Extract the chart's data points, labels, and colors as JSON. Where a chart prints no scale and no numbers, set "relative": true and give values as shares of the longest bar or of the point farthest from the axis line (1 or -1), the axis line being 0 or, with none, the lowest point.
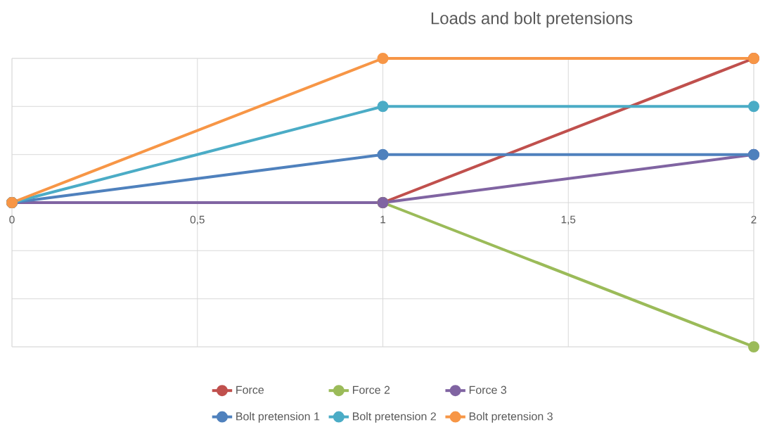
{
  "chart_data": {
    "type": "line",
    "title": "Loads and bolt pretensions",
    "relative": true,
    "x": [
      0,
      1,
      2
    ],
    "xlim": [
      0,
      2
    ],
    "xticks": [
      0,
      {
        "value": 0.5,
        "label": "0,5"
      },
      1,
      {
        "value": 1.5,
        "label": "1,5"
      },
      2
    ],
    "grid": true,
    "legend": "bottom",
    "marker": "circle",
    "line_style": "solid",
    "series": [
      {
        "name": "Force",
        "color": "#c0504d",
        "values": [
          0,
          0,
          1
        ]
      },
      {
        "name": "Force 2",
        "color": "#9bbb59",
        "values": [
          0,
          0,
          -1
        ]
      },
      {
        "name": "Force 3",
        "color": "#8064a2",
        "values": [
          0,
          0,
          0.333
        ]
      },
      {
        "name": "Bolt pretension 1",
        "color": "#4f81bd",
        "values": [
          0,
          0.333,
          0.333
        ]
      },
      {
        "name": "Bolt pretension 2",
        "color": "#4bacc6",
        "values": [
          0,
          0.667,
          0.667
        ]
      },
      {
        "name": "Bolt pretension 3",
        "color": "#f79646",
        "values": [
          0,
          1,
          1
        ]
      }
    ]
  }
}
